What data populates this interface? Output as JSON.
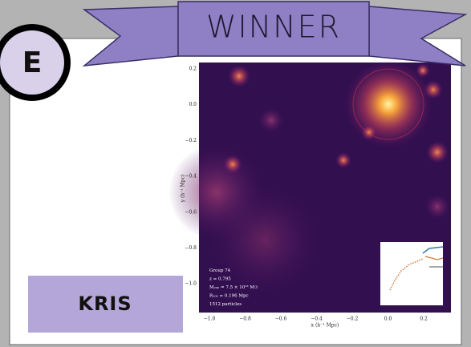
{
  "banner": {
    "title": "WINNER"
  },
  "badge": {
    "letter": "E"
  },
  "name_label": "KRIS",
  "plot": {
    "y_ticks": [
      "0.2",
      "0.0",
      "−0.2",
      "−0.4",
      "−0.6",
      "−0.8",
      "−1.0"
    ],
    "x_ticks": [
      "−1.0",
      "−0.8",
      "−0.6",
      "−0.4",
      "−0.2",
      "0.0",
      "0.2"
    ],
    "x_label": "x (h⁻¹ Mpc)",
    "y_label": "y (h⁻¹ Mpc)",
    "annotation": [
      "Group 74",
      "z = 0.795",
      "M₂₀₀ = 7.5 × 10¹³ M☉",
      "R₂₀₀ = 0.196 Mpc",
      "1512 particles"
    ]
  }
}
